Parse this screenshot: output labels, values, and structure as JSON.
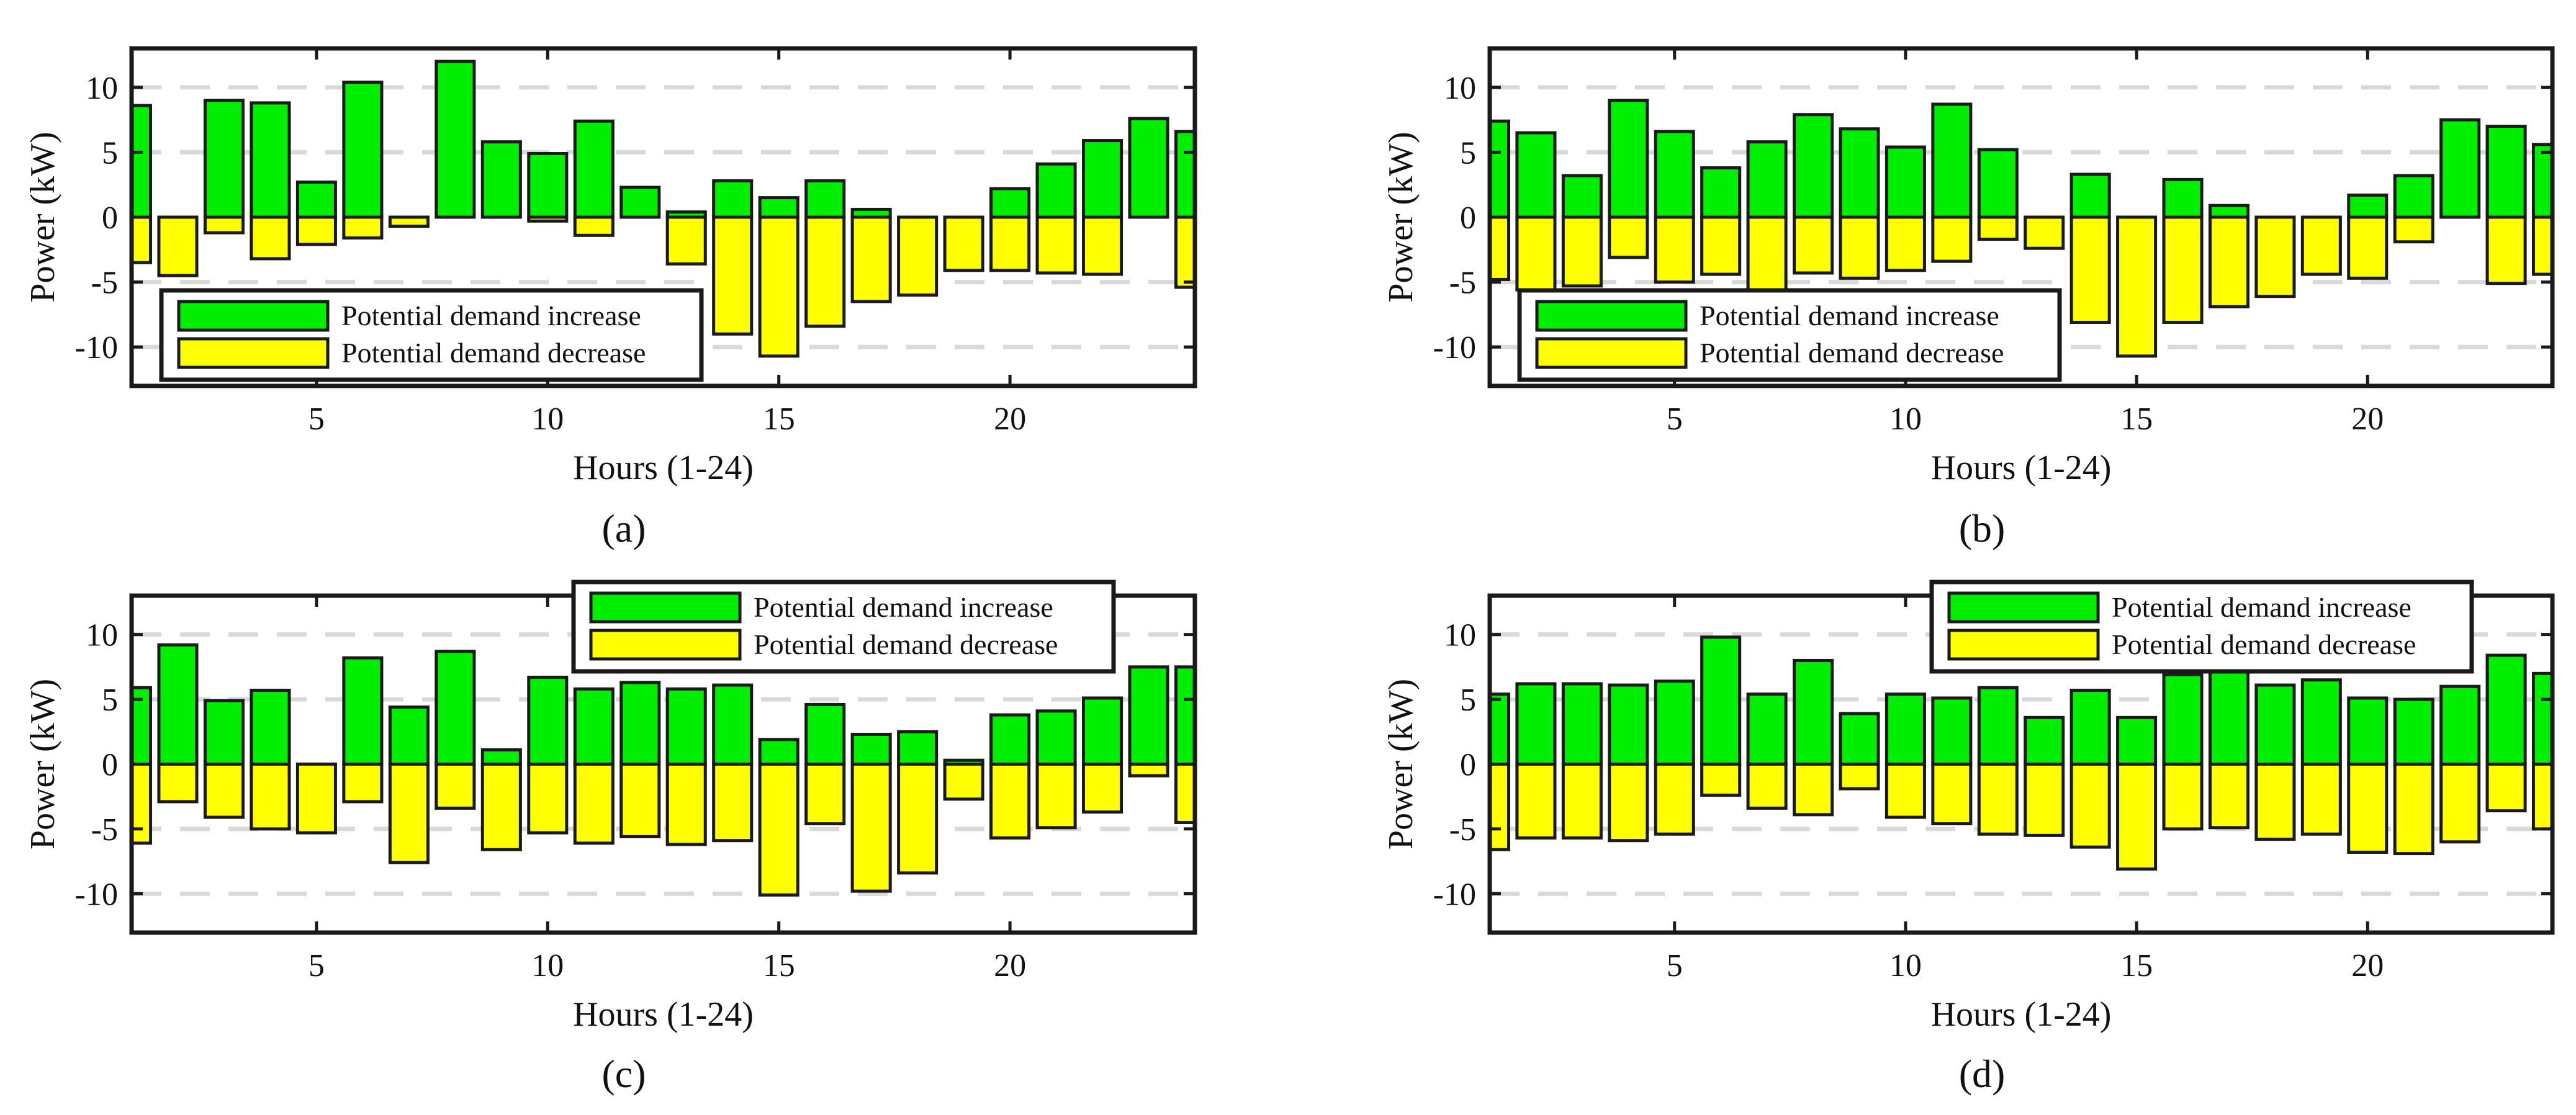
{
  "figure": {
    "colors": {
      "increase": "#00ee00",
      "decrease": "#ffff00",
      "outline": "#1a1a1a",
      "grid": "#d9d9d9"
    },
    "legend_labels": {
      "increase": "Potential demand increase",
      "decrease": "Potential demand decrease"
    }
  },
  "chart_data": [
    {
      "id": "a",
      "caption": "(a)",
      "type": "bar",
      "xlabel": "Hours (1-24)",
      "ylabel": "Power (kW)",
      "xlim": [
        1,
        24
      ],
      "ylim": [
        -13,
        13
      ],
      "xticks": [
        5,
        10,
        15,
        20
      ],
      "yticks": [
        -10,
        -5,
        0,
        5,
        10
      ],
      "grid": "horizontal dashed at -10, -5, 5, 10",
      "legend_position": "bottom-left",
      "hours": [
        1,
        2,
        3,
        4,
        5,
        6,
        7,
        8,
        9,
        10,
        11,
        12,
        13,
        14,
        15,
        16,
        17,
        18,
        19,
        20,
        21,
        22,
        23,
        24
      ],
      "series": [
        {
          "name": "Potential demand increase",
          "values": [
            8.6,
            0,
            9,
            8.8,
            2.7,
            10.4,
            0,
            12,
            5.8,
            4.9,
            7.4,
            2.3,
            0.4,
            2.8,
            1.5,
            2.8,
            0.6,
            0,
            0,
            2.2,
            4.1,
            5.9,
            7.6,
            6.6
          ]
        },
        {
          "name": "Potential demand decrease",
          "values": [
            -3.5,
            -4.5,
            -1.2,
            -3.2,
            -2.1,
            -1.6,
            -0.7,
            0,
            0,
            -0.3,
            -1.4,
            0,
            -3.6,
            -9,
            -10.7,
            -8.4,
            -6.5,
            -6,
            -4.1,
            -4.1,
            -4.3,
            -4.4,
            0,
            -5.4
          ]
        }
      ]
    },
    {
      "id": "b",
      "caption": "(b)",
      "type": "bar",
      "xlabel": "Hours (1-24)",
      "ylabel": "Power (kW)",
      "xlim": [
        1,
        24
      ],
      "ylim": [
        -13,
        13
      ],
      "xticks": [
        5,
        10,
        15,
        20
      ],
      "yticks": [
        -10,
        -5,
        0,
        5,
        10
      ],
      "grid": "horizontal dashed at -10, -5, 5, 10",
      "legend_position": "bottom-left",
      "hours": [
        1,
        2,
        3,
        4,
        5,
        6,
        7,
        8,
        9,
        10,
        11,
        12,
        13,
        14,
        15,
        16,
        17,
        18,
        19,
        20,
        21,
        22,
        23,
        24
      ],
      "series": [
        {
          "name": "Potential demand increase",
          "values": [
            7.4,
            6.5,
            3.2,
            9,
            6.6,
            3.8,
            5.8,
            7.9,
            6.8,
            5.4,
            8.7,
            5.2,
            0,
            3.3,
            0,
            2.9,
            0.9,
            0,
            0,
            1.7,
            3.2,
            7.5,
            7,
            5.6
          ]
        },
        {
          "name": "Potential demand decrease",
          "values": [
            -4.8,
            -5.6,
            -5.3,
            -3.1,
            -5,
            -4.4,
            -6.2,
            -4.3,
            -4.7,
            -4.1,
            -3.4,
            -1.7,
            -2.4,
            -8.1,
            -10.7,
            -8.1,
            -6.9,
            -6.1,
            -4.4,
            -4.7,
            -1.9,
            0,
            -5.1,
            -4.4
          ]
        }
      ]
    },
    {
      "id": "c",
      "caption": "(c)",
      "type": "bar",
      "xlabel": "Hours (1-24)",
      "ylabel": "Power (kW)",
      "xlim": [
        1,
        24
      ],
      "ylim": [
        -13,
        13
      ],
      "xticks": [
        5,
        10,
        15,
        20
      ],
      "yticks": [
        -10,
        -5,
        0,
        5,
        10
      ],
      "grid": "horizontal dashed at -10, -5, 5, 10",
      "legend_position": "top-right",
      "hours": [
        1,
        2,
        3,
        4,
        5,
        6,
        7,
        8,
        9,
        10,
        11,
        12,
        13,
        14,
        15,
        16,
        17,
        18,
        19,
        20,
        21,
        22,
        23,
        24
      ],
      "series": [
        {
          "name": "Potential demand increase",
          "values": [
            5.9,
            9.2,
            4.9,
            5.7,
            0,
            8.2,
            4.4,
            8.7,
            1.1,
            6.7,
            5.8,
            6.3,
            5.8,
            6.1,
            1.9,
            4.6,
            2.3,
            2.5,
            0.3,
            3.8,
            4.1,
            5.1,
            7.5,
            7.5
          ]
        },
        {
          "name": "Potential demand decrease",
          "values": [
            -6.1,
            -2.9,
            -4.1,
            -5,
            -5.3,
            -2.9,
            -7.6,
            -3.4,
            -6.6,
            -5.3,
            -6.1,
            -5.6,
            -6.2,
            -5.9,
            -10.1,
            -4.6,
            -9.8,
            -8.4,
            -2.7,
            -5.7,
            -4.9,
            -3.7,
            -0.9,
            -4.5
          ]
        }
      ]
    },
    {
      "id": "d",
      "caption": "(d)",
      "type": "bar",
      "xlabel": "Hours (1-24)",
      "ylabel": "Power (kW)",
      "xlim": [
        1,
        24
      ],
      "ylim": [
        -13,
        13
      ],
      "xticks": [
        5,
        10,
        15,
        20
      ],
      "yticks": [
        -10,
        -5,
        0,
        5,
        10
      ],
      "grid": "horizontal dashed at -10, -5, 5, 10",
      "legend_position": "top-right",
      "hours": [
        1,
        2,
        3,
        4,
        5,
        6,
        7,
        8,
        9,
        10,
        11,
        12,
        13,
        14,
        15,
        16,
        17,
        18,
        19,
        20,
        21,
        22,
        23,
        24
      ],
      "series": [
        {
          "name": "Potential demand increase",
          "values": [
            5.4,
            6.2,
            6.2,
            6.1,
            6.4,
            9.8,
            5.4,
            8,
            3.9,
            5.4,
            5.1,
            5.9,
            3.6,
            5.7,
            3.6,
            6.9,
            7.2,
            6.1,
            6.5,
            5.1,
            5,
            6,
            8.4,
            7
          ]
        },
        {
          "name": "Potential demand decrease",
          "values": [
            -6.6,
            -5.7,
            -5.7,
            -5.9,
            -5.4,
            -2.4,
            -3.4,
            -3.9,
            -1.9,
            -4.1,
            -4.6,
            -5.4,
            -5.5,
            -6.4,
            -8.1,
            -5,
            -4.9,
            -5.8,
            -5.4,
            -6.8,
            -6.9,
            -6,
            -3.6,
            -5
          ]
        }
      ]
    }
  ]
}
